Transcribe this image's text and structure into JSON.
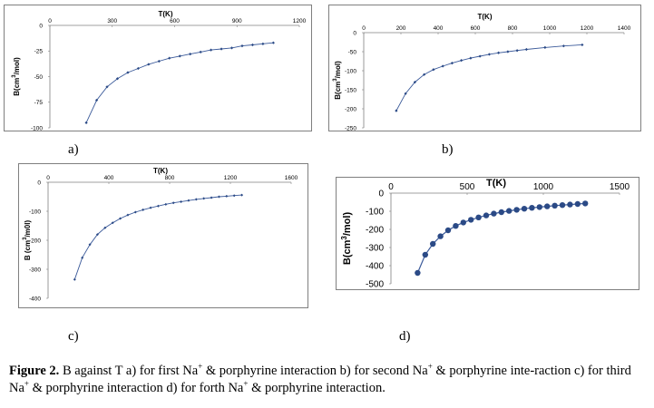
{
  "chart_data": [
    {
      "type": "line",
      "panel_label": "a)",
      "xlabel": "T(K)",
      "ylabel_main": "B(cm",
      "ylabel_sup": "3",
      "ylabel_tail": "/mol)",
      "xlim": [
        0,
        1200
      ],
      "ylim": [
        -100,
        0
      ],
      "xticks": [
        "0",
        "300",
        "600",
        "900",
        "1200"
      ],
      "yticks": [
        "0",
        "-25",
        "-50",
        "-75",
        "-100"
      ],
      "series": [
        {
          "x": [
            175,
            225,
            275,
            325,
            375,
            425,
            475,
            525,
            575,
            625,
            675,
            725,
            775,
            825,
            875,
            925,
            975,
            1025,
            1075
          ],
          "y": [
            -95,
            -73,
            -60,
            -52,
            -46,
            -42,
            -38,
            -35,
            -32,
            -30,
            -28,
            -26,
            -24,
            -23,
            -22,
            -20,
            -19,
            -18,
            -17
          ]
        }
      ]
    },
    {
      "type": "line",
      "panel_label": "b)",
      "xlabel": "T(K)",
      "ylabel_main": "B(cm",
      "ylabel_sup": "3",
      "ylabel_tail": "/mol)",
      "xlim": [
        0,
        1400
      ],
      "ylim": [
        -250,
        0
      ],
      "xticks": [
        "0",
        "200",
        "400",
        "600",
        "800",
        "1000",
        "1200",
        "1400"
      ],
      "yticks": [
        "0",
        "-50",
        "-100",
        "-150",
        "-200",
        "-250"
      ],
      "series": [
        {
          "x": [
            175,
            225,
            275,
            325,
            375,
            425,
            475,
            525,
            575,
            625,
            675,
            725,
            775,
            825,
            875,
            975,
            1075,
            1175
          ],
          "y": [
            -205,
            -160,
            -130,
            -110,
            -97,
            -88,
            -80,
            -73,
            -67,
            -62,
            -57,
            -53,
            -50,
            -47,
            -44,
            -39,
            -35,
            -32
          ]
        }
      ]
    },
    {
      "type": "line",
      "panel_label": "c)",
      "xlabel": "T(K)",
      "ylabel_main": "B (cm",
      "ylabel_sup": "3",
      "ylabel_tail": "/m0l)",
      "xlim": [
        0,
        1600
      ],
      "ylim": [
        -400,
        0
      ],
      "xticks": [
        "0",
        "400",
        "800",
        "1200",
        "1600"
      ],
      "yticks": [
        "0",
        "-100",
        "-200",
        "-300",
        "-400"
      ],
      "series": [
        {
          "x": [
            175,
            225,
            275,
            325,
            375,
            425,
            475,
            525,
            575,
            625,
            675,
            725,
            775,
            825,
            875,
            925,
            975,
            1025,
            1075,
            1125,
            1175,
            1225,
            1275
          ],
          "y": [
            -335,
            -260,
            -215,
            -180,
            -157,
            -140,
            -125,
            -113,
            -103,
            -95,
            -88,
            -82,
            -76,
            -71,
            -67,
            -63,
            -59,
            -56,
            -53,
            -50,
            -48,
            -46,
            -44
          ]
        }
      ]
    },
    {
      "type": "line",
      "panel_label": "d)",
      "xlabel": "T(K)",
      "ylabel_main": "B(cm",
      "ylabel_sup": "3",
      "ylabel_tail": "/mol)",
      "xlim": [
        0,
        1500
      ],
      "ylim": [
        -500,
        0
      ],
      "xticks": [
        "0",
        "500",
        "1000",
        "1500"
      ],
      "yticks": [
        "0",
        "-100",
        "-200",
        "-300",
        "-400",
        "-500"
      ],
      "series": [
        {
          "x": [
            175,
            225,
            275,
            325,
            375,
            425,
            475,
            525,
            575,
            625,
            675,
            725,
            775,
            825,
            875,
            925,
            975,
            1025,
            1075,
            1125,
            1175,
            1225,
            1275
          ],
          "y": [
            -440,
            -340,
            -280,
            -238,
            -205,
            -181,
            -162,
            -147,
            -134,
            -123,
            -113,
            -105,
            -98,
            -92,
            -86,
            -81,
            -77,
            -73,
            -69,
            -66,
            -63,
            -60,
            -57
          ]
        }
      ]
    }
  ],
  "caption": {
    "figure_label": "Figure 2.",
    "part1": " B against T a) for first Na",
    "part2": " & porphyrine interaction b) for second Na",
    "part3": " & porphyrine inte-raction c) for third Na",
    "part4": " & porphyrine interaction d) for forth Na",
    "part5": " & porphyrine interaction.",
    "charge": "+"
  },
  "colors": {
    "line": "#3b5a9a",
    "marker": "#2b4a86",
    "axis": "#808080"
  }
}
